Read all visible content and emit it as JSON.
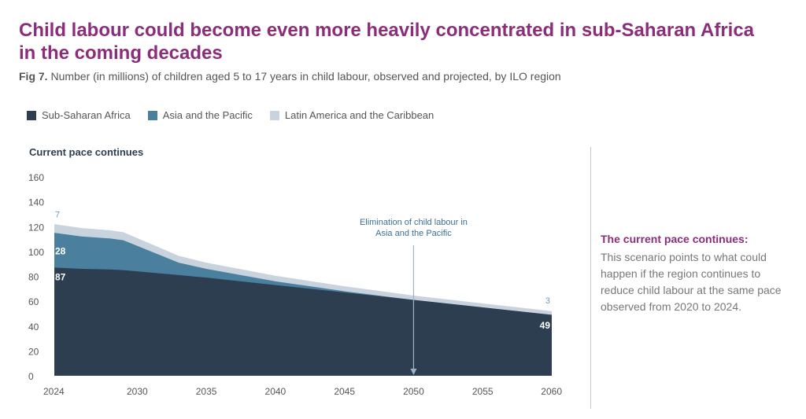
{
  "header": {
    "title": "Child labour could become even more heavily concentrated in sub-Saharan Africa in the coming decades",
    "fig_label": "Fig 7.",
    "subtitle": "Number (in millions) of children aged 5 to 17 years in child labour, observed and projected, by ILO region"
  },
  "legend": [
    {
      "label": "Sub-Saharan Africa",
      "color": "#2c3e50"
    },
    {
      "label": "Asia and the Pacific",
      "color": "#4a7f9e"
    },
    {
      "label": "Latin America and the Caribbean",
      "color": "#c9d3de"
    }
  ],
  "scenario_label": "Current pace continues",
  "side_panel": {
    "title": "The current pace continues:",
    "text": "This scenario points to what could happen if the region continues to reduce child labour at the same pace observed from 2020 to 2024."
  },
  "chart_data": {
    "type": "area",
    "stacked": true,
    "x": [
      2024,
      2026,
      2028,
      2029,
      2033,
      2035,
      2040,
      2045,
      2050,
      2055,
      2060
    ],
    "series": [
      {
        "name": "Sub-Saharan Africa",
        "color": "#2c3e50",
        "values": [
          87,
          86,
          85.5,
          85,
          81,
          79,
          73,
          67,
          61,
          55,
          49
        ]
      },
      {
        "name": "Asia and the Pacific",
        "color": "#4a7f9e",
        "values": [
          28,
          26,
          25,
          24,
          10,
          7,
          3,
          1,
          0,
          0,
          0
        ]
      },
      {
        "name": "Latin America and the Caribbean",
        "color": "#c9d3de",
        "values": [
          7,
          6.8,
          6.6,
          6.5,
          5.5,
          5,
          4.5,
          4,
          3.5,
          3.2,
          3
        ]
      }
    ],
    "xlim": [
      2024,
      2060
    ],
    "ylim": [
      0,
      160
    ],
    "y_ticks": [
      0,
      20,
      40,
      60,
      80,
      100,
      120,
      140,
      160
    ],
    "x_ticks": [
      2024,
      2030,
      2035,
      2040,
      2045,
      2050,
      2055,
      2060
    ],
    "data_labels": [
      {
        "text": "7",
        "x": 2024,
        "y": 121,
        "series": "Latin America and the Caribbean",
        "anchor": "start",
        "dy": -10
      },
      {
        "text": "28",
        "x": 2024,
        "y": 101,
        "series": "Asia and the Pacific",
        "anchor": "start",
        "dy": 5
      },
      {
        "text": "87",
        "x": 2024,
        "y": 80,
        "series": "Sub-Saharan Africa",
        "anchor": "start",
        "dy": 5
      },
      {
        "text": "3",
        "x": 2060,
        "y": 52,
        "series": "Latin America and the Caribbean",
        "anchor": "end",
        "dy": -10
      },
      {
        "text": "49",
        "x": 2060,
        "y": 41,
        "series": "Sub-Saharan Africa",
        "anchor": "end",
        "dy": 5
      }
    ],
    "annotation": {
      "lines": [
        "Elimination of child labour in",
        "Asia and the Pacific"
      ],
      "x": 2050,
      "arrow_top_y": 105,
      "color": "#3d6f93",
      "arrow_color": "#9db4c8"
    }
  }
}
